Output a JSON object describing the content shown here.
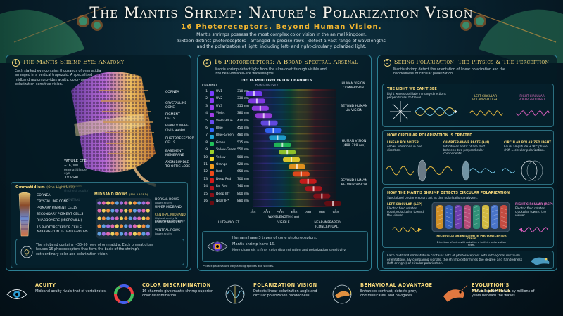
{
  "header": {
    "title": "The Mantis Shrimp: Nature's Polarization Vision",
    "subtitle": "16 Photoreceptors. Beyond Human Vision.",
    "intro_1": "Mantis shrimps possess the most complex color vision in the animal kingdom.",
    "intro_2": "Sixteen distinct photoreceptors—arranged in precise rows—detect a vast range of wavelengths",
    "intro_3": "and the polarization of light, including left- and right-circularly polarized light."
  },
  "panel1": {
    "number": "1",
    "title": "The Mantis Shrimp Eye: Anatomy",
    "text": "Each stalked eye contains thousands of ommatidia arranged in a vertical trapezoid. A specialized midband region provides acuity, color- and polarization-sensitive vision.",
    "whole_eye": "WHOLE EYE",
    "whole_eye_note": "~16,000 ommatidia per eye",
    "dorsal": "DORSAL",
    "midband": "MIDBAND",
    "midband_note": "(highest acuity)",
    "ventral": "VENTRAL",
    "labels": [
      "CORNEA",
      "CRYSTALLINE CONE",
      "PIGMENT CELLS",
      "RHABDOMERE (light guide)",
      "PHOTORECEPTOR CELLS",
      "BASEMENT MEMBRANE",
      "AXON BUNDLE TO OPTIC LOBE"
    ]
  },
  "ommatidium": {
    "title": "Ommatidium",
    "title_note": "(One Light Unit)",
    "labels": [
      "CORNEA",
      "CRYSTALLINE CONE",
      "PRIMARY PIGMENT CELLS",
      "SECONDARY PIGMENT CELLS",
      "RHABDOMERE (MICROVILLI)",
      "16 PHOTORECEPTOR CELLS ARRANGED IN TETRAD GROUPS"
    ],
    "midband_rows_title": "MIDBAND ROWS",
    "midband_rows_note": "(ENLARGED)",
    "rows": [
      {
        "name": "DORSAL ROWS",
        "note": "Lower acuity"
      },
      {
        "name": "UPPER MIDBAND",
        "note": ""
      },
      {
        "name": "CENTRAL MIDBAND",
        "note": "Highest acuity & polarization sensitivity"
      },
      {
        "name": "LOWER MIDBAND",
        "note": ""
      },
      {
        "name": "VENTRAL ROWS",
        "note": "Lower acuity"
      }
    ],
    "note": "The midband contains ~30–50 rows of ommatidia. Each ommatidium houses 16 photoreceptors that form the basis of the shrimp's extraordinary color and polarization vision."
  },
  "panel2": {
    "number": "2",
    "title": "16 Photoreceptors: A Broad Spectral Arsenal",
    "text": "Mantis shrimp detect light from the ultraviolet through visible and into near-infrared-like wavelengths.",
    "table_title": "THE 16 PHOTORECEPTOR CHANNELS",
    "table_sub": "PEAK SENSITIVITY",
    "col_channel": "CHANNEL",
    "col_comparison": "HUMAN VISION COMPARISON",
    "comparisons": [
      "BEYOND HUMAN UV VISION",
      "HUMAN VISION (400–700 nm)",
      "BEYOND HUMAN RED/NIR VISION"
    ],
    "xlabel": "WAVELENGTH (nm)",
    "ticks": [
      "300",
      "400",
      "500",
      "600",
      "700",
      "800",
      "900"
    ],
    "regions": [
      "ULTRAVIOLET",
      "VISIBLE",
      "NEAR-INFRARED (CONCEPTUAL)"
    ],
    "compare_1": "Humans have 3 types of cone photoreceptors.",
    "compare_2": "Mantis shrimp have 16.",
    "compare_3": "More channels = finer color discrimination and polarization sensitivity.",
    "footnote": "*Exact peak values vary among species and studies."
  },
  "chart_data": {
    "type": "bar",
    "title": "THE 16 PHOTORECEPTOR CHANNELS",
    "xlabel": "WAVELENGTH (nm)",
    "xlim": [
      300,
      900
    ],
    "channels": [
      {
        "n": "1",
        "name": "UV1",
        "peak": "310 nm",
        "value": 310,
        "color": "#7a3dff"
      },
      {
        "n": "2",
        "name": "UV2",
        "peak": "330 nm",
        "value": 330,
        "color": "#8a3cf2"
      },
      {
        "n": "3",
        "name": "UV3",
        "peak": "355 nm",
        "value": 355,
        "color": "#9b3ff0"
      },
      {
        "n": "4",
        "name": "Violet",
        "peak": "380 nm",
        "value": 380,
        "color": "#a13ee6"
      },
      {
        "n": "5",
        "name": "Violet-Blue",
        "peak": "420 nm",
        "value": 420,
        "color": "#6a4cf0"
      },
      {
        "n": "6",
        "name": "Blue",
        "peak": "450 nm",
        "value": 450,
        "color": "#3366ff"
      },
      {
        "n": "7",
        "name": "Blue-Green",
        "peak": "480 nm",
        "value": 480,
        "color": "#1fa6d8"
      },
      {
        "n": "8",
        "name": "Green",
        "peak": "515 nm",
        "value": 515,
        "color": "#22c25a"
      },
      {
        "n": "9",
        "name": "Yellow-Green",
        "peak": "550 nm",
        "value": 550,
        "color": "#9bd12a"
      },
      {
        "n": "10",
        "name": "Yellow",
        "peak": "580 nm",
        "value": 580,
        "color": "#f0d62a"
      },
      {
        "n": "11",
        "name": "Orange",
        "peak": "620 nm",
        "value": 620,
        "color": "#f39a1d"
      },
      {
        "n": "12",
        "name": "Red",
        "peak": "650 nm",
        "value": 650,
        "color": "#ef4a1a"
      },
      {
        "n": "13",
        "name": "Deep Red",
        "peak": "700 nm",
        "value": 700,
        "color": "#d61a1a"
      },
      {
        "n": "14",
        "name": "Far Red",
        "peak": "740 nm",
        "value": 740,
        "color": "#b5141c"
      },
      {
        "n": "15",
        "name": "Deep IR*",
        "peak": "800 nm",
        "value": 800,
        "color": "#8a1018"
      },
      {
        "n": "16",
        "name": "Near IR*",
        "peak": "880 nm",
        "value": 880,
        "color": "#6a0c12"
      }
    ]
  },
  "panel3": {
    "number": "3",
    "title": "Seeing Polarization: The Physics & The Perception",
    "text": "Mantis shrimp detect the orientation of linear polarization and the handedness of circular polarization.",
    "light_title": "THE LIGHT WE CAN'T SEE",
    "light_text": "Light waves oscillate in many directions perpendicular to travel.",
    "left_circ": "LEFT-CIRCULAR POLARIZED LIGHT",
    "right_circ": "RIGHT-CIRCULAR POLARIZED LIGHT",
    "how_title": "HOW CIRCULAR POLARIZATION IS CREATED",
    "linear_pol": "LINEAR POLARIZER",
    "linear_pol_text": "Allows vibrations in one direction.",
    "qwp": "QUARTER-WAVE PLATE (λ/4)",
    "qwp_text": "Introduces a 90° phase shift between two perpendicular components.",
    "circ_light": "CIRCULAR POLARIZED LIGHT",
    "circ_light_text": "Equal amplitude + 90° phase shift = circular polarization.",
    "detect_title": "HOW THE MANTIS SHRIMP DETECTS CIRCULAR POLARIZATION",
    "detect_text": "Specialized photoreceptors act as tiny polarization analyzers.",
    "lcp": "LEFT-CIRCULAR (LCP)",
    "lcp_text": "Electric field rotates counterclockwise toward the viewer.",
    "rcp": "RIGHT-CIRCULAR (RCP)",
    "rcp_text": "Electric field rotates clockwise toward the viewer.",
    "microvilli": "MICROVILLI ORIENTATION IN PHOTORECEPTOR CELLS",
    "microvilli_text": "Direction of microvilli acts like a built-in polarization filter.",
    "bottom_text": "Each midband ommatidium contains sets of photoreceptors with orthogonal microvilli orientations. By comparing signals, the shrimp determines the degree and handedness (left or right) of circular polarization."
  },
  "footer": [
    {
      "title": "ACUITY",
      "text": "Midband acuity rivals that of vertebrates.",
      "icon": "eye-icon"
    },
    {
      "title": "COLOR DISCRIMINATION",
      "text": "16 channels give mantis shrimp superior color discrimination.",
      "icon": "color-wheel-icon"
    },
    {
      "title": "POLARIZATION VISION",
      "text": "Detects linear polarization angle and circular polarization handedness.",
      "icon": "polarization-icon"
    },
    {
      "title": "BEHAVIORAL ADVANTAGE",
      "text": "Enhances contrast, detects prey, communicates, and navigates.",
      "icon": "shrimp-signal-icon"
    },
    {
      "title": "EVOLUTION'S MASTERPIECE",
      "text": "A visual system honed by millions of years beneath the waves.",
      "icon": "shrimp-icon"
    }
  ]
}
